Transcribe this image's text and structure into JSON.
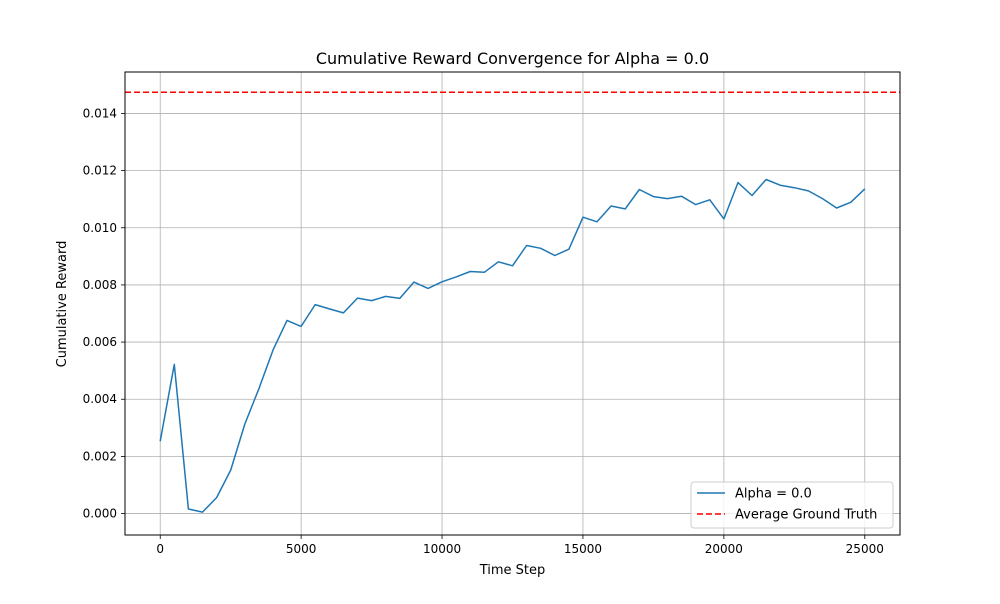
{
  "chart_data": {
    "type": "line",
    "title": "Cumulative Reward Convergence for Alpha = 0.0",
    "xlabel": "Time Step",
    "ylabel": "Cumulative Reward",
    "xlim": [
      -1250,
      26250
    ],
    "ylim": [
      -0.00075,
      0.01545
    ],
    "xticks": [
      0,
      5000,
      10000,
      15000,
      20000,
      25000
    ],
    "xtick_labels": [
      "0",
      "5000",
      "10000",
      "15000",
      "20000",
      "25000"
    ],
    "yticks": [
      0.0,
      0.002,
      0.004,
      0.006,
      0.008,
      0.01,
      0.012,
      0.014
    ],
    "ytick_labels": [
      "0.000",
      "0.002",
      "0.004",
      "0.006",
      "0.008",
      "0.010",
      "0.012",
      "0.014"
    ],
    "grid": true,
    "legend_position": "lower right",
    "series": [
      {
        "name": "Alpha = 0.0",
        "color": "#1f77b4",
        "style": "solid",
        "x": [
          0,
          500,
          1000,
          1500,
          2000,
          2500,
          3000,
          3500,
          4000,
          4500,
          5000,
          5500,
          6000,
          6500,
          7000,
          7500,
          8000,
          8500,
          9000,
          9500,
          10000,
          10500,
          11000,
          11500,
          12000,
          12500,
          13000,
          13500,
          14000,
          14500,
          15000,
          15500,
          16000,
          16500,
          17000,
          17500,
          18000,
          18500,
          19000,
          19500,
          20000,
          20500,
          21000,
          21500,
          22000,
          22500,
          23000,
          23500,
          24000,
          24500,
          25000
        ],
        "y": [
          0.00253,
          0.00522,
          0.00016,
          5e-05,
          0.00056,
          0.00152,
          0.00313,
          0.00437,
          0.00572,
          0.00676,
          0.00655,
          0.00731,
          0.00716,
          0.00702,
          0.00754,
          0.00745,
          0.0076,
          0.00753,
          0.0081,
          0.00788,
          0.00811,
          0.00828,
          0.00847,
          0.00844,
          0.00881,
          0.00867,
          0.00938,
          0.00928,
          0.00903,
          0.00925,
          0.01037,
          0.01021,
          0.01076,
          0.01066,
          0.01134,
          0.01109,
          0.01102,
          0.0111,
          0.01081,
          0.01098,
          0.01031,
          0.01158,
          0.01113,
          0.01169,
          0.01149,
          0.0114,
          0.01129,
          0.01102,
          0.01069,
          0.01089,
          0.01136
        ]
      },
      {
        "name": "Average Ground Truth",
        "color": "#ff0000",
        "style": "dashed",
        "hline": 0.01474
      }
    ]
  }
}
